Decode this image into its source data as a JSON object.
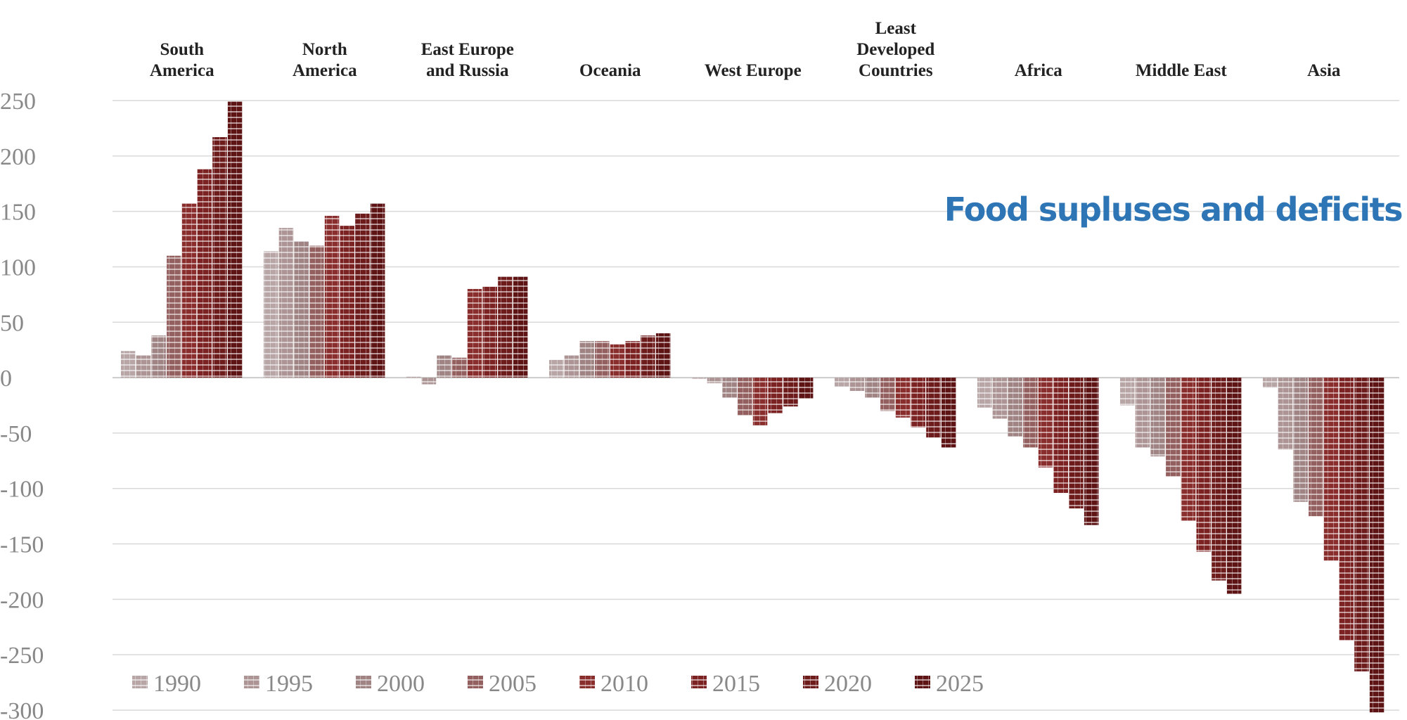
{
  "chart_data": {
    "type": "bar",
    "title": "Food supluses and deficits",
    "xlabel": "",
    "ylabel": "",
    "ylim": [
      -300,
      250
    ],
    "yticks": [
      250,
      200,
      150,
      100,
      50,
      0,
      -50,
      -100,
      -150,
      -200,
      -250,
      -300
    ],
    "grid": true,
    "legend_position": "bottom-left",
    "categories": [
      {
        "lines": [
          "South",
          "America"
        ]
      },
      {
        "lines": [
          "North",
          "America"
        ]
      },
      {
        "lines": [
          "East Europe",
          "and Russia"
        ]
      },
      {
        "lines": [
          "Oceania"
        ]
      },
      {
        "lines": [
          "West Europe"
        ]
      },
      {
        "lines": [
          "Least",
          "Developed",
          "Countries"
        ]
      },
      {
        "lines": [
          "Africa"
        ]
      },
      {
        "lines": [
          "Middle East"
        ]
      },
      {
        "lines": [
          "Asia"
        ]
      }
    ],
    "series": [
      {
        "name": "1990",
        "color": "#b8a6a6",
        "values": [
          24,
          114,
          1,
          16,
          0,
          -8,
          -27,
          -25,
          -9
        ]
      },
      {
        "name": "1995",
        "color": "#ad9595",
        "values": [
          20,
          135,
          -6,
          20,
          -5,
          -12,
          -37,
          -63,
          -65
        ]
      },
      {
        "name": "2000",
        "color": "#a08484",
        "values": [
          38,
          123,
          20,
          33,
          -18,
          -18,
          -53,
          -71,
          -112
        ]
      },
      {
        "name": "2005",
        "color": "#935f5f",
        "values": [
          110,
          119,
          18,
          33,
          -34,
          -30,
          -63,
          -89,
          -125
        ]
      },
      {
        "name": "2010",
        "color": "#8a2d2d",
        "values": [
          157,
          146,
          80,
          30,
          -43,
          -36,
          -81,
          -129,
          -165
        ]
      },
      {
        "name": "2015",
        "color": "#7c2222",
        "values": [
          188,
          137,
          82,
          33,
          -32,
          -45,
          -104,
          -157,
          -237
        ]
      },
      {
        "name": "2020",
        "color": "#6e1b1b",
        "values": [
          217,
          148,
          91,
          38,
          -26,
          -54,
          -118,
          -183,
          -265
        ]
      },
      {
        "name": "2025",
        "color": "#5e1414",
        "values": [
          249,
          157,
          91,
          40,
          -19,
          -63,
          -133,
          -195,
          -302
        ]
      }
    ]
  },
  "colors": {
    "title": "#2e75b6",
    "tick_text": "#888888",
    "category_text": "#222222",
    "gridline": "#d9d9d9"
  }
}
